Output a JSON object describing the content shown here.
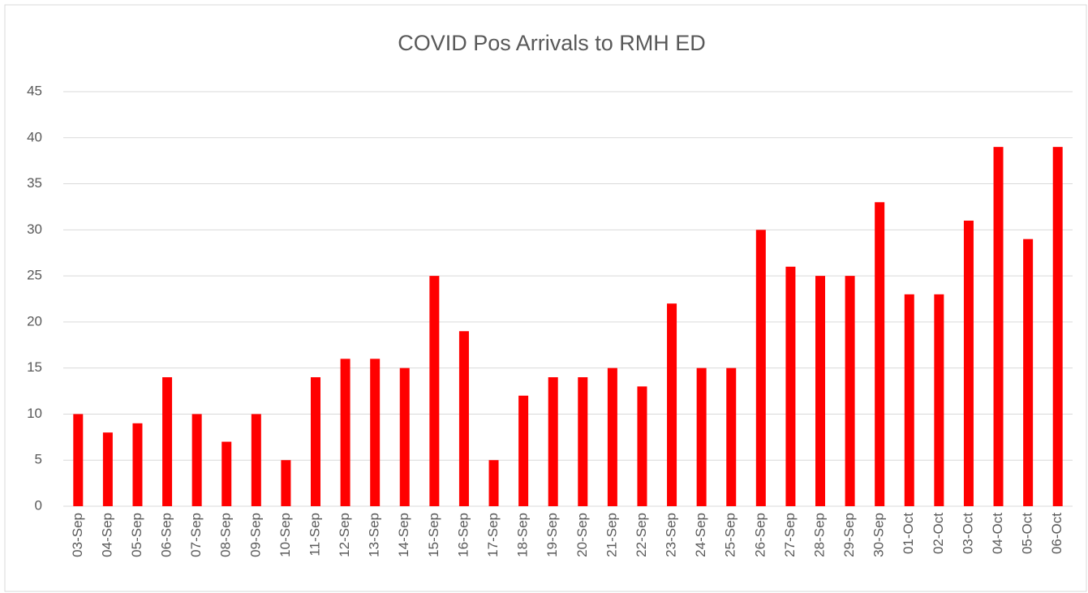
{
  "chart_data": {
    "type": "bar",
    "title": "COVID Pos Arrivals to RMH ED",
    "categories": [
      "03-Sep",
      "04-Sep",
      "05-Sep",
      "06-Sep",
      "07-Sep",
      "08-Sep",
      "09-Sep",
      "10-Sep",
      "11-Sep",
      "12-Sep",
      "13-Sep",
      "14-Sep",
      "15-Sep",
      "16-Sep",
      "17-Sep",
      "18-Sep",
      "19-Sep",
      "20-Sep",
      "21-Sep",
      "22-Sep",
      "23-Sep",
      "24-Sep",
      "25-Sep",
      "26-Sep",
      "27-Sep",
      "28-Sep",
      "29-Sep",
      "30-Sep",
      "01-Oct",
      "02-Oct",
      "03-Oct",
      "04-Oct",
      "05-Oct",
      "06-Oct"
    ],
    "values": [
      10,
      8,
      9,
      14,
      10,
      7,
      10,
      5,
      14,
      16,
      16,
      15,
      25,
      19,
      5,
      12,
      14,
      14,
      15,
      13,
      22,
      15,
      15,
      30,
      26,
      25,
      25,
      33,
      23,
      23,
      31,
      39,
      29,
      39
    ],
    "color": "#ff0000",
    "ylim": [
      0,
      45
    ],
    "yticks": [
      0,
      5,
      10,
      15,
      20,
      25,
      30,
      35,
      40,
      45
    ],
    "grid": true
  }
}
